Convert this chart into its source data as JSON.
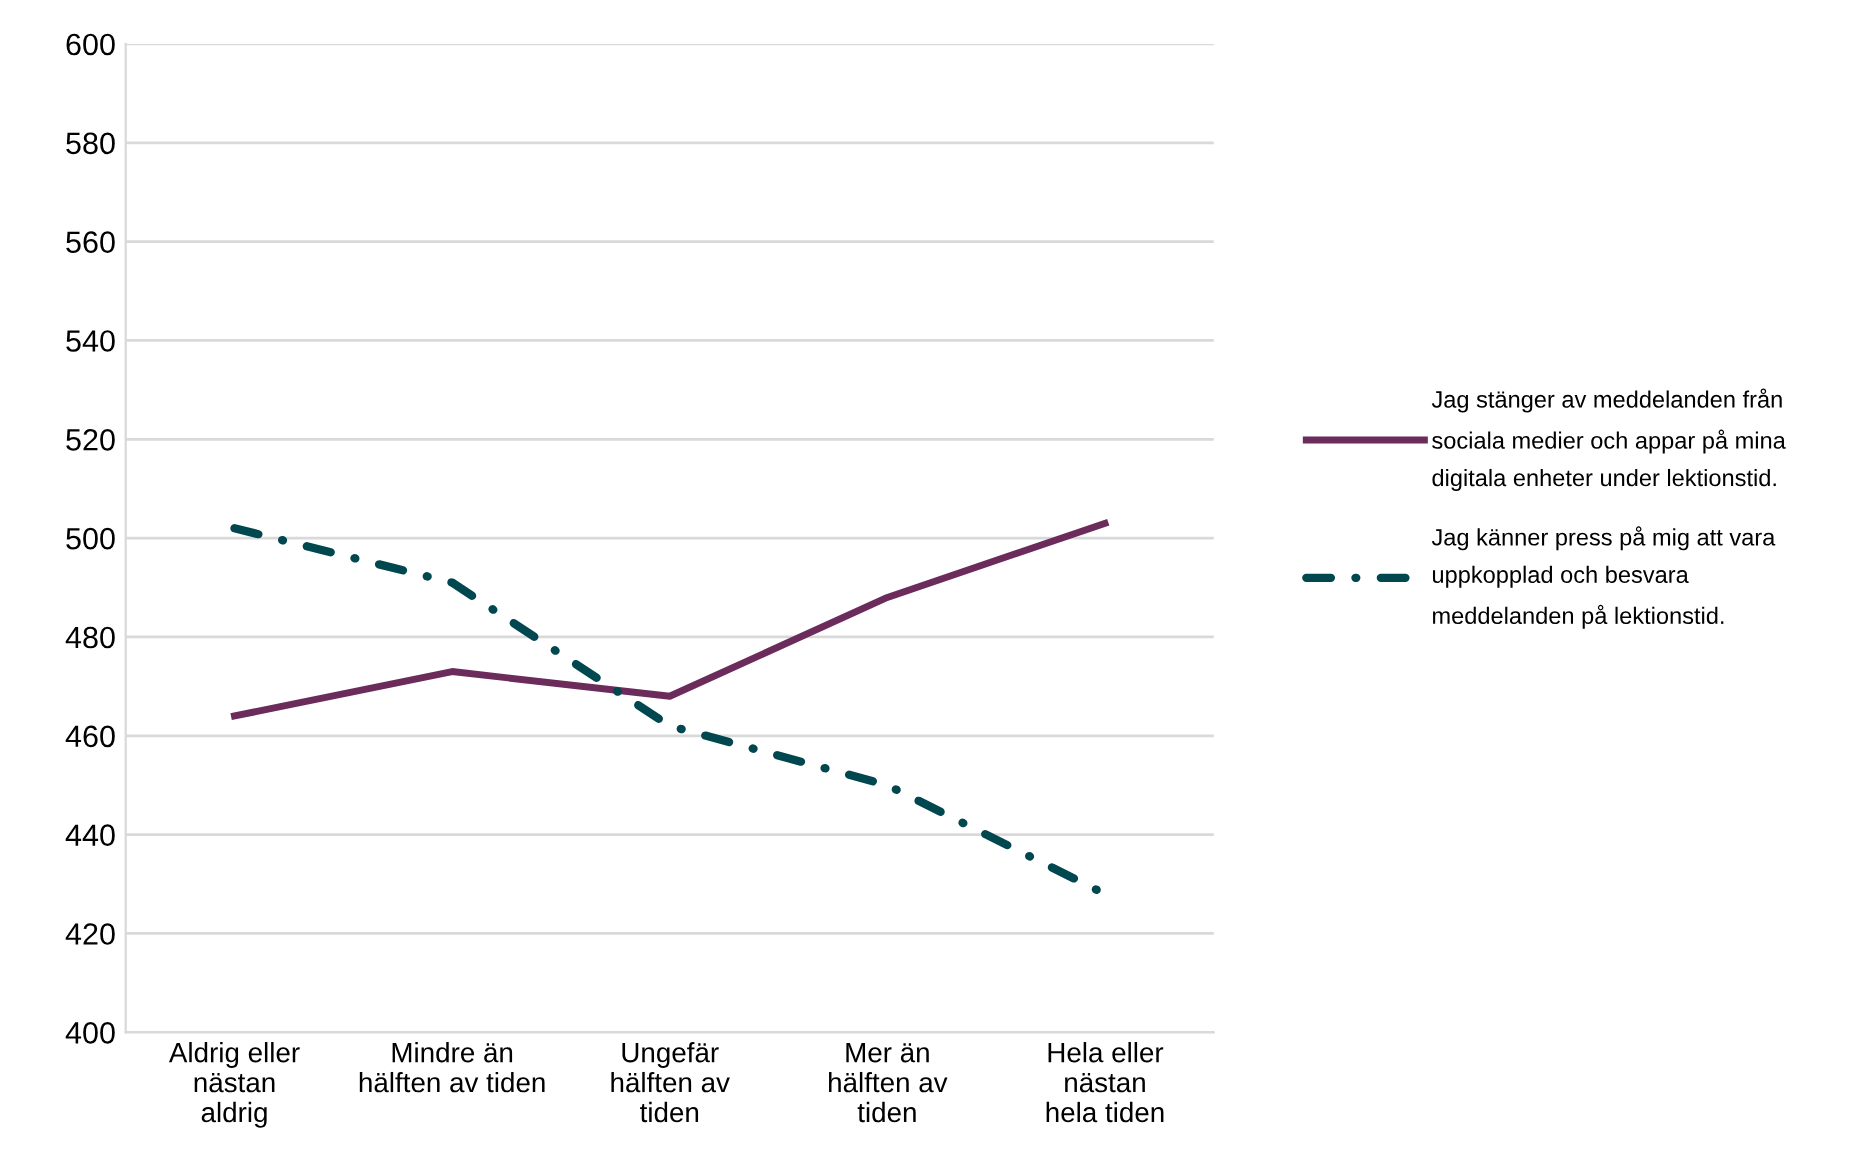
{
  "chart_data": {
    "type": "line",
    "categories": [
      "Aldrig eller\nnästan\naldrig",
      "Mindre än\nhälften av tiden",
      "Ungefär\nhälften av\ntiden",
      "Mer än\nhälften av\ntiden",
      "Hela eller\nnästan\nhela tiden"
    ],
    "series": [
      {
        "name": "Jag stänger av meddelanden från\nsociala medier och appar på mina\ndigitala enheter under lektionstid.",
        "color": "#6b2c5c",
        "values": [
          464,
          473,
          468,
          488,
          503
        ],
        "line_style": "solid"
      },
      {
        "name": "Jag känner press på mig att vara\nuppkopplad och besvara\nmeddelanden på lektionstid.",
        "color": "#00474f",
        "values": [
          502,
          491,
          462,
          450,
          428
        ],
        "line_style": "dashdot"
      }
    ],
    "ylim": [
      400,
      600
    ],
    "yticks": [
      400,
      420,
      440,
      460,
      480,
      500,
      520,
      540,
      560,
      580,
      600
    ],
    "grid": "y",
    "legend": "right",
    "marker": "none"
  }
}
